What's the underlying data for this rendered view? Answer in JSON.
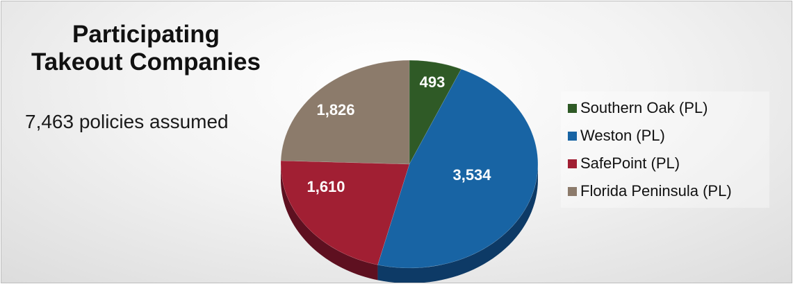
{
  "title_line1": "Participating",
  "title_line2": "Takeout Companies",
  "subtitle": "7,463 policies assumed",
  "chart_data": {
    "type": "pie",
    "categories": [
      "Southern Oak (PL)",
      "Weston (PL)",
      "SafePoint (PL)",
      "Florida Peninsula (PL)"
    ],
    "values": [
      493,
      3534,
      1610,
      1826
    ],
    "value_labels": [
      "493",
      "3,534",
      "1,610",
      "1,826"
    ],
    "colors": [
      "#2f5a26",
      "#1864a4",
      "#a11f33",
      "#8c7b6b"
    ],
    "side_colors": [
      "#1c3a16",
      "#0d3a66",
      "#5e1020",
      "#5a4c40"
    ],
    "legend": "right",
    "title": "",
    "total": 7463
  }
}
